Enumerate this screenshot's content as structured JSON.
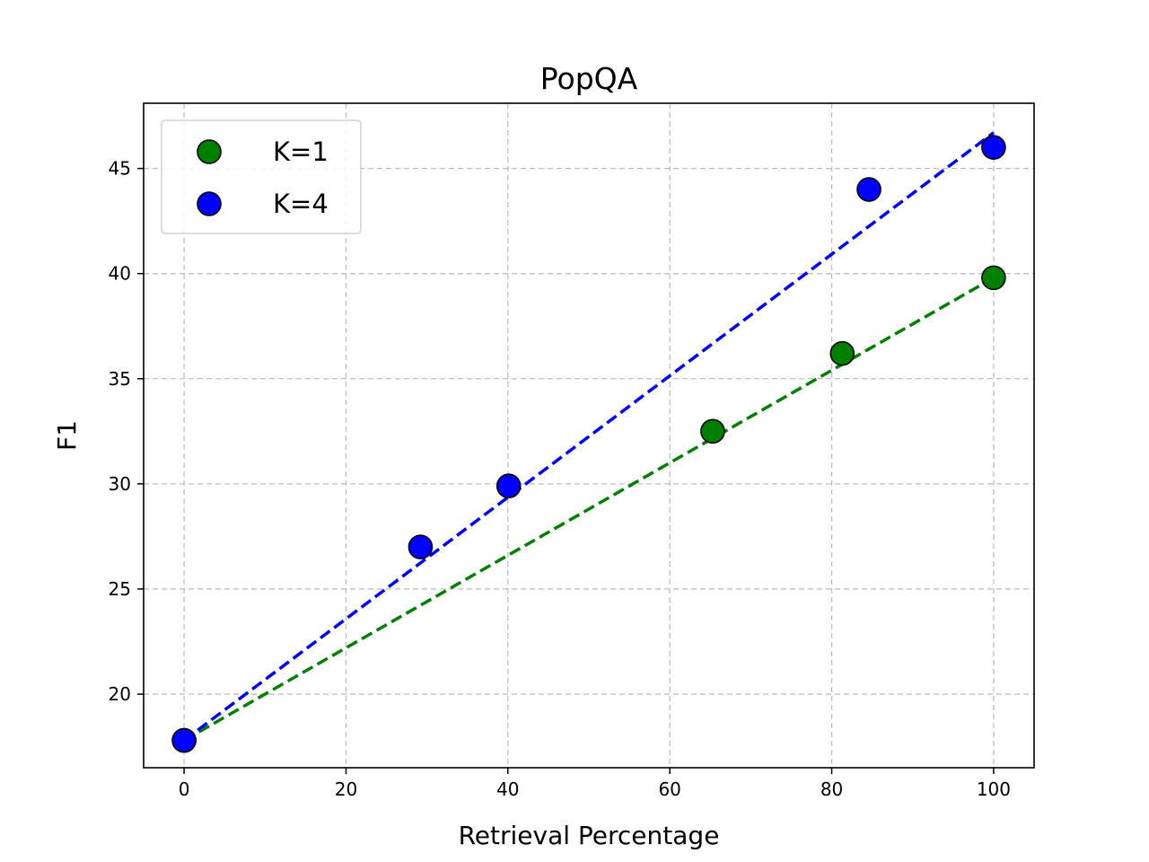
{
  "chart_data": {
    "type": "scatter",
    "title": "PopQA",
    "xlabel": "Retrieval Percentage",
    "ylabel": "F1",
    "xlim": [
      -5,
      105
    ],
    "ylim": [
      16.5,
      48.1
    ],
    "xticks": [
      0,
      20,
      40,
      60,
      80,
      100
    ],
    "yticks": [
      20,
      25,
      30,
      35,
      40,
      45
    ],
    "grid": true,
    "legend_position": "top-left",
    "series": [
      {
        "name": "K=1",
        "color": "#008000",
        "points": [
          {
            "x": 0,
            "y": 17.8
          },
          {
            "x": 65.3,
            "y": 32.5
          },
          {
            "x": 81.3,
            "y": 36.2
          },
          {
            "x": 100,
            "y": 39.8
          }
        ],
        "fit_line": {
          "x": [
            0,
            100
          ],
          "y": [
            17.8,
            39.8
          ]
        }
      },
      {
        "name": "K=4",
        "color": "#0000ff",
        "points": [
          {
            "x": 0,
            "y": 17.8
          },
          {
            "x": 29.2,
            "y": 27.0
          },
          {
            "x": 40.1,
            "y": 29.9
          },
          {
            "x": 84.6,
            "y": 44.0
          },
          {
            "x": 100,
            "y": 46.0
          }
        ],
        "fit_line": {
          "x": [
            0,
            100
          ],
          "y": [
            17.8,
            46.7
          ]
        }
      }
    ]
  }
}
